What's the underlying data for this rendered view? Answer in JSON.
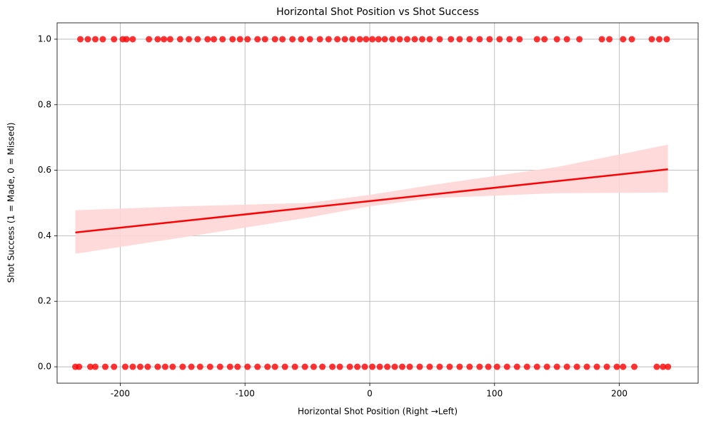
{
  "chart_data": {
    "type": "scatter",
    "title": "Horizontal Shot Position vs Shot Success",
    "x_label": "Horizontal Shot Position (Right →Left)",
    "y_label": "Shot Success (1 = Made, 0 = Missed)",
    "points": {
      "color": "#ff0000",
      "x": [
        -232,
        -226,
        -220,
        -214,
        -205,
        -198,
        -195,
        -190,
        -177,
        -170,
        -165,
        -160,
        -152,
        -145,
        -138,
        -130,
        -125,
        -118,
        -110,
        -104,
        -98,
        -90,
        -84,
        -76,
        -70,
        -62,
        -55,
        -48,
        -40,
        -33,
        -26,
        -20,
        -14,
        -8,
        -3,
        2,
        7,
        12,
        18,
        24,
        30,
        36,
        42,
        48,
        56,
        65,
        72,
        80,
        88,
        96,
        104,
        112,
        120,
        134,
        140,
        150,
        158,
        168,
        186,
        192,
        203,
        210,
        226,
        232,
        238,
        -236,
        -233,
        -224,
        -220,
        -212,
        -205,
        -196,
        -190,
        -184,
        -178,
        -170,
        -164,
        -158,
        -150,
        -143,
        -136,
        -128,
        -120,
        -112,
        -106,
        -98,
        -90,
        -82,
        -76,
        -68,
        -60,
        -52,
        -45,
        -38,
        -30,
        -24,
        -16,
        -10,
        -4,
        2,
        8,
        14,
        20,
        26,
        32,
        40,
        48,
        56,
        64,
        72,
        80,
        88,
        95,
        102,
        110,
        118,
        126,
        134,
        142,
        150,
        158,
        166,
        174,
        182,
        190,
        198,
        203,
        212,
        230,
        235,
        239
      ],
      "values": [
        1,
        1,
        1,
        1,
        1,
        1,
        1,
        1,
        1,
        1,
        1,
        1,
        1,
        1,
        1,
        1,
        1,
        1,
        1,
        1,
        1,
        1,
        1,
        1,
        1,
        1,
        1,
        1,
        1,
        1,
        1,
        1,
        1,
        1,
        1,
        1,
        1,
        1,
        1,
        1,
        1,
        1,
        1,
        1,
        1,
        1,
        1,
        1,
        1,
        1,
        1,
        1,
        1,
        1,
        1,
        1,
        1,
        1,
        1,
        1,
        1,
        1,
        1,
        1,
        1,
        0,
        0,
        0,
        0,
        0,
        0,
        0,
        0,
        0,
        0,
        0,
        0,
        0,
        0,
        0,
        0,
        0,
        0,
        0,
        0,
        0,
        0,
        0,
        0,
        0,
        0,
        0,
        0,
        0,
        0,
        0,
        0,
        0,
        0,
        0,
        0,
        0,
        0,
        0,
        0,
        0,
        0,
        0,
        0,
        0,
        0,
        0,
        0,
        0,
        0,
        0,
        0,
        0,
        0,
        0,
        0,
        0,
        0,
        0,
        0,
        0,
        0,
        0,
        0,
        0,
        0
      ]
    },
    "fit": {
      "color": "#ff0000",
      "x": [
        -236,
        239
      ],
      "values": [
        0.41,
        0.603
      ]
    },
    "band": {
      "color": "#ffd6d6",
      "x": [
        -236,
        -150,
        -50,
        0,
        50,
        150,
        239
      ],
      "lower": [
        0.345,
        0.395,
        0.455,
        0.49,
        0.515,
        0.53,
        0.532
      ],
      "upper": [
        0.478,
        0.49,
        0.5,
        0.525,
        0.555,
        0.61,
        0.678
      ]
    },
    "xlim": [
      -250.6,
      263.2
    ],
    "ylim": [
      -0.05,
      1.05
    ],
    "xticks": [
      -200,
      -100,
      0,
      100,
      200
    ],
    "yticks": [
      {
        "value": 0,
        "label": "0.0"
      },
      {
        "value": 0.2,
        "label": "0.2"
      },
      {
        "value": 0.4,
        "label": "0.4"
      },
      {
        "value": 0.6,
        "label": "0.6"
      },
      {
        "value": 0.8,
        "label": "0.8"
      },
      {
        "value": 1,
        "label": "1.0"
      }
    ],
    "grid": true
  }
}
